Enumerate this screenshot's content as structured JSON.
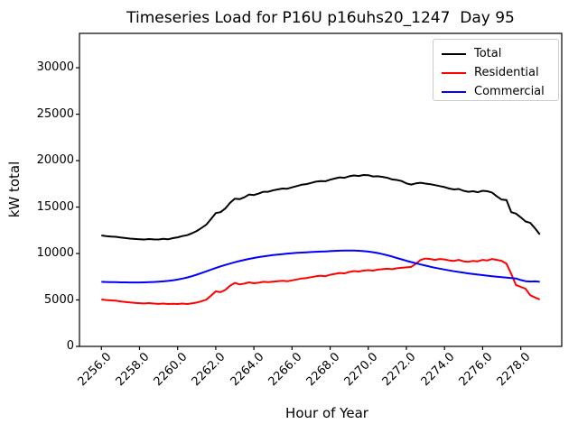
{
  "figure": {
    "title": "Timeseries Load for P16U p16uhs20_1247  Day 95",
    "xlabel": "Hour of Year",
    "ylabel": "kW total"
  },
  "chart_data": {
    "type": "line",
    "title": "Timeseries Load for P16U p16uhs20_1247  Day 95",
    "xlabel": "Hour of Year",
    "ylabel": "kW total",
    "grid": false,
    "xlim": [
      2254.85,
      2280.15
    ],
    "ylim": [
      0,
      33700
    ],
    "xticks": [
      2256,
      2258,
      2260,
      2262,
      2264,
      2266,
      2268,
      2270,
      2272,
      2274,
      2276,
      2278
    ],
    "xtick_labels": [
      "2256.0",
      "2258.0",
      "2260.0",
      "2262.0",
      "2264.0",
      "2266.0",
      "2268.0",
      "2270.0",
      "2272.0",
      "2274.0",
      "2276.0",
      "2278.0"
    ],
    "yticks": [
      0,
      5000,
      10000,
      15000,
      20000,
      25000,
      30000
    ],
    "ytick_labels": [
      "0",
      "5000",
      "10000",
      "15000",
      "20000",
      "25000",
      "30000"
    ],
    "legend": {
      "position": "upper right",
      "entries": [
        "Total",
        "Residential",
        "Commercial"
      ]
    },
    "x": [
      2256.0,
      2256.25,
      2256.5,
      2256.75,
      2257.0,
      2257.25,
      2257.5,
      2257.75,
      2258.0,
      2258.25,
      2258.5,
      2258.75,
      2259.0,
      2259.25,
      2259.5,
      2259.75,
      2260.0,
      2260.25,
      2260.5,
      2260.75,
      2261.0,
      2261.25,
      2261.5,
      2261.75,
      2262.0,
      2262.25,
      2262.5,
      2262.75,
      2263.0,
      2263.25,
      2263.5,
      2263.75,
      2264.0,
      2264.25,
      2264.5,
      2264.75,
      2265.0,
      2265.25,
      2265.5,
      2265.75,
      2266.0,
      2266.25,
      2266.5,
      2266.75,
      2267.0,
      2267.25,
      2267.5,
      2267.75,
      2268.0,
      2268.25,
      2268.5,
      2268.75,
      2269.0,
      2269.25,
      2269.5,
      2269.75,
      2270.0,
      2270.25,
      2270.5,
      2270.75,
      2271.0,
      2271.25,
      2271.5,
      2271.75,
      2272.0,
      2272.25,
      2272.5,
      2272.75,
      2273.0,
      2273.25,
      2273.5,
      2273.75,
      2274.0,
      2274.25,
      2274.5,
      2274.75,
      2275.0,
      2275.25,
      2275.5,
      2275.75,
      2276.0,
      2276.25,
      2276.5,
      2276.75,
      2277.0,
      2277.25,
      2277.5,
      2277.75,
      2278.0,
      2278.25,
      2278.5,
      2278.75,
      2279.0
    ],
    "series": [
      {
        "name": "Total",
        "color": "#000000",
        "values": [
          11950,
          11880,
          11830,
          11800,
          11720,
          11660,
          11610,
          11570,
          11540,
          11510,
          11560,
          11520,
          11510,
          11580,
          11530,
          11650,
          11740,
          11880,
          11970,
          12180,
          12420,
          12750,
          13100,
          13700,
          14350,
          14450,
          14850,
          15450,
          15900,
          15850,
          16050,
          16350,
          16300,
          16450,
          16650,
          16650,
          16800,
          16900,
          17000,
          16980,
          17120,
          17260,
          17400,
          17470,
          17600,
          17730,
          17800,
          17780,
          17950,
          18070,
          18200,
          18150,
          18320,
          18400,
          18350,
          18450,
          18430,
          18300,
          18320,
          18250,
          18150,
          17980,
          17920,
          17800,
          17550,
          17420,
          17550,
          17620,
          17530,
          17460,
          17360,
          17260,
          17150,
          17000,
          16900,
          16950,
          16750,
          16650,
          16700,
          16600,
          16750,
          16700,
          16550,
          16150,
          15800,
          15750,
          14450,
          14300,
          13900,
          13450,
          13300,
          12700,
          12050
        ]
      },
      {
        "name": "Residential",
        "color": "#ff0000",
        "values": [
          5050,
          4990,
          4950,
          4920,
          4850,
          4790,
          4730,
          4680,
          4650,
          4620,
          4660,
          4610,
          4570,
          4610,
          4560,
          4590,
          4560,
          4610,
          4560,
          4630,
          4720,
          4870,
          5030,
          5460,
          5920,
          5840,
          6080,
          6530,
          6840,
          6670,
          6760,
          6900,
          6800,
          6860,
          6950,
          6910,
          6960,
          7010,
          7060,
          7010,
          7110,
          7210,
          7310,
          7360,
          7450,
          7550,
          7610,
          7560,
          7710,
          7810,
          7910,
          7860,
          8010,
          8110,
          8060,
          8160,
          8210,
          8160,
          8260,
          8310,
          8360,
          8310,
          8410,
          8460,
          8510,
          8560,
          8910,
          9310,
          9460,
          9410,
          9310,
          9410,
          9360,
          9260,
          9210,
          9310,
          9160,
          9110,
          9210,
          9160,
          9310,
          9260,
          9410,
          9310,
          9210,
          8910,
          7810,
          6610,
          6410,
          6210,
          5510,
          5260,
          5060
        ]
      },
      {
        "name": "Commercial",
        "color": "#0000ff",
        "values": [
          6950,
          6930,
          6920,
          6910,
          6900,
          6895,
          6890,
          6890,
          6890,
          6900,
          6910,
          6930,
          6960,
          7000,
          7050,
          7120,
          7200,
          7300,
          7420,
          7560,
          7720,
          7900,
          8080,
          8260,
          8440,
          8610,
          8770,
          8920,
          9060,
          9190,
          9310,
          9420,
          9520,
          9610,
          9690,
          9760,
          9830,
          9890,
          9940,
          9990,
          10030,
          10070,
          10100,
          10130,
          10160,
          10190,
          10210,
          10230,
          10260,
          10280,
          10300,
          10310,
          10320,
          10310,
          10290,
          10260,
          10210,
          10140,
          10050,
          9940,
          9810,
          9670,
          9520,
          9370,
          9220,
          9080,
          8950,
          8820,
          8700,
          8580,
          8470,
          8370,
          8270,
          8180,
          8090,
          8010,
          7930,
          7860,
          7790,
          7730,
          7670,
          7610,
          7560,
          7510,
          7460,
          7410,
          7360,
          7310,
          7150,
          7020,
          6980,
          7000,
          6950
        ]
      }
    ]
  }
}
